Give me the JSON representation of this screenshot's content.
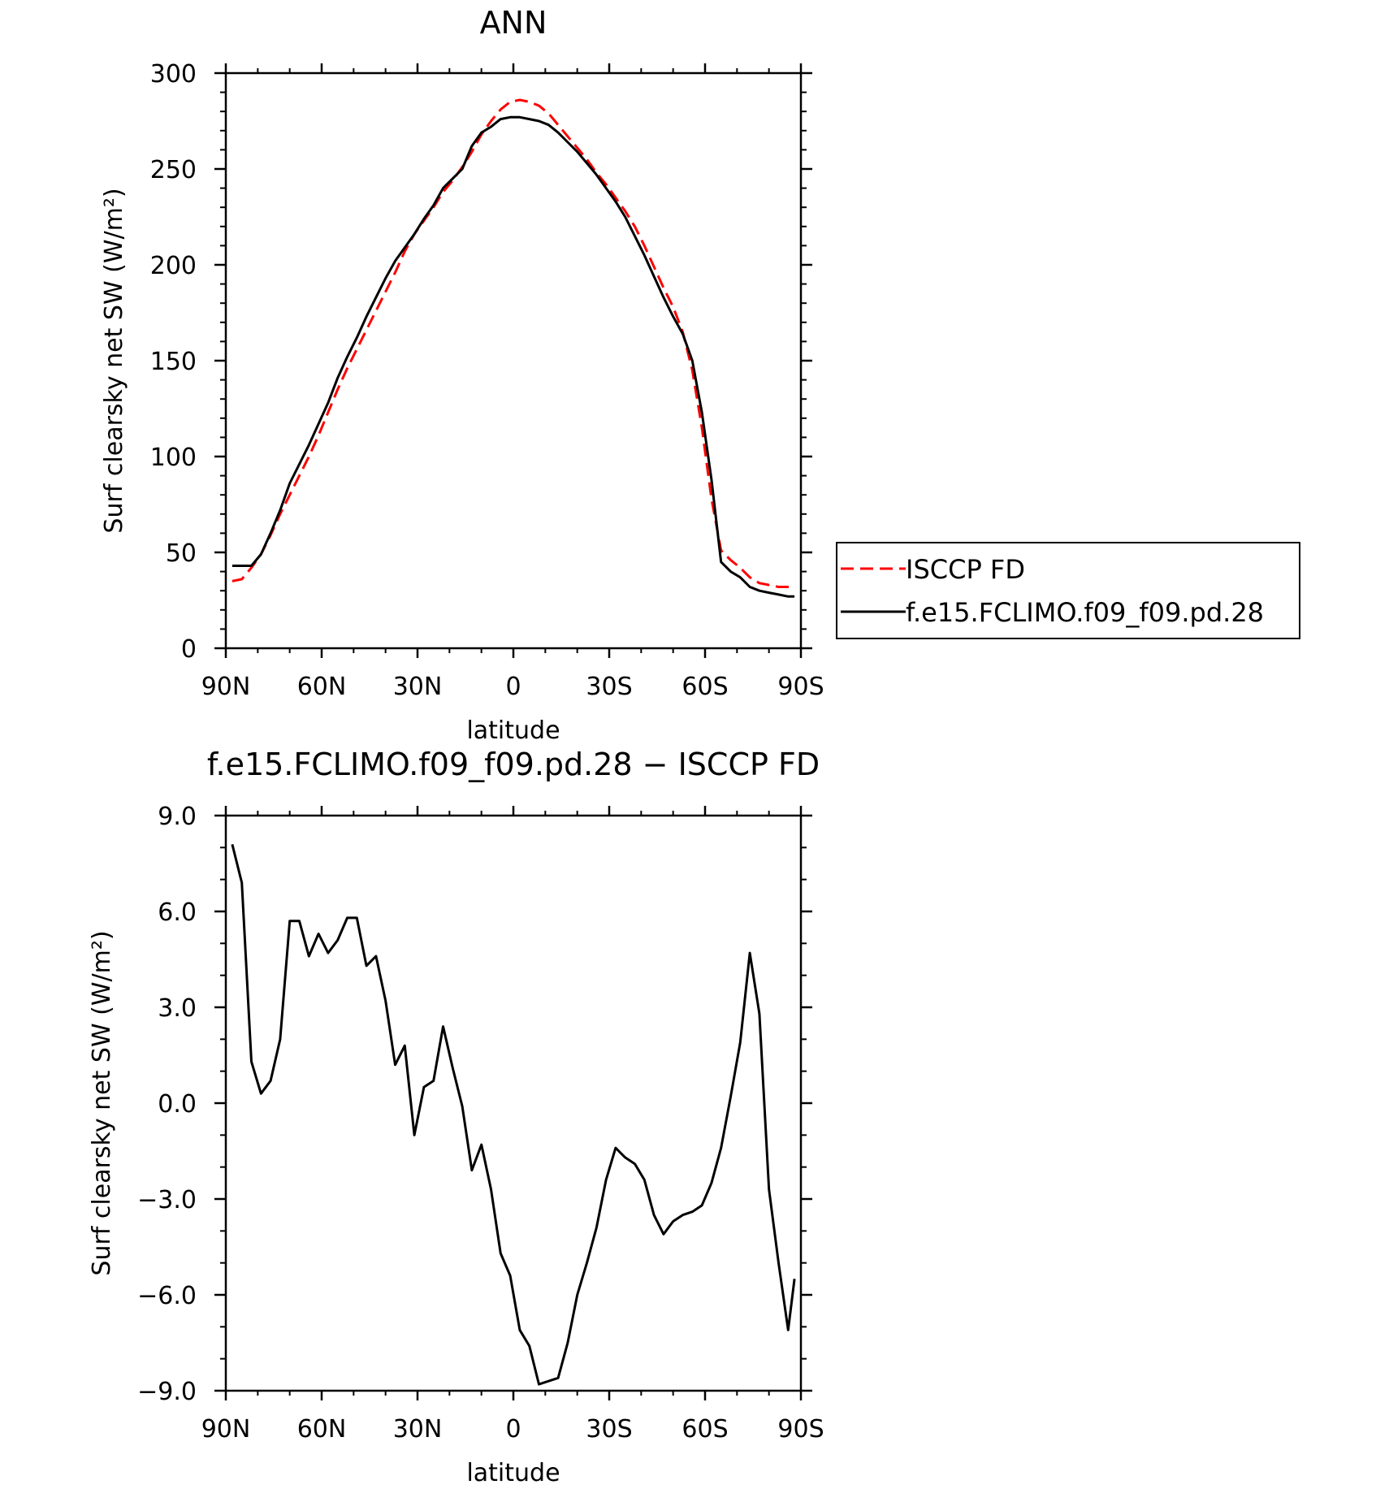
{
  "chart_data": [
    {
      "type": "line",
      "title": "ANN",
      "xlabel": "latitude",
      "ylabel": "Surf clearsky net SW (W/m²)",
      "xlim": [
        90,
        -90
      ],
      "ylim": [
        0,
        300
      ],
      "xticks": [
        {
          "value": 90,
          "label": "90N"
        },
        {
          "value": 60,
          "label": "60N"
        },
        {
          "value": 30,
          "label": "30N"
        },
        {
          "value": 0,
          "label": "0"
        },
        {
          "value": -30,
          "label": "30S"
        },
        {
          "value": -60,
          "label": "60S"
        },
        {
          "value": -90,
          "label": "90S"
        }
      ],
      "yticks": [
        {
          "value": 0,
          "label": "0"
        },
        {
          "value": 50,
          "label": "50"
        },
        {
          "value": 100,
          "label": "100"
        },
        {
          "value": 150,
          "label": "150"
        },
        {
          "value": 200,
          "label": "200"
        },
        {
          "value": 250,
          "label": "250"
        },
        {
          "value": 300,
          "label": "300"
        }
      ],
      "legend_position": "right",
      "series": [
        {
          "name": "ISCCP FD",
          "color": "#ff0000",
          "dash": "dashed",
          "x": [
            88,
            85,
            82,
            79,
            76,
            73,
            70,
            67,
            64,
            61,
            58,
            55,
            52,
            49,
            46,
            43,
            40,
            37,
            34,
            31,
            28,
            25,
            22,
            19,
            16,
            13,
            10,
            7,
            4,
            1,
            -2,
            -5,
            -8,
            -11,
            -14,
            -17,
            -20,
            -23,
            -26,
            -29,
            -32,
            -35,
            -38,
            -41,
            -44,
            -47,
            -50,
            -53,
            -56,
            -59,
            -62,
            -65,
            -68,
            -71,
            -74,
            -77,
            -80,
            -83,
            -86,
            -88
          ],
          "y": [
            35,
            36,
            42,
            49,
            59,
            70,
            80,
            90,
            100,
            111,
            123,
            135,
            146,
            156,
            166,
            176,
            186,
            196,
            207,
            216,
            223,
            230,
            238,
            244,
            251,
            259,
            268,
            275,
            281,
            285,
            286,
            285,
            283,
            279,
            273,
            267,
            261,
            255,
            248,
            242,
            235,
            228,
            220,
            210,
            199,
            188,
            178,
            165,
            145,
            115,
            78,
            51,
            46,
            42,
            37,
            34,
            33,
            32,
            32,
            32
          ]
        },
        {
          "name": "f.e15.FCLIMO.f09_f09.pd.28",
          "color": "#000000",
          "dash": "solid",
          "x": [
            88,
            85,
            82,
            79,
            76,
            73,
            70,
            67,
            64,
            61,
            58,
            55,
            52,
            49,
            46,
            43,
            40,
            37,
            34,
            31,
            28,
            25,
            22,
            19,
            16,
            13,
            10,
            7,
            4,
            1,
            -2,
            -5,
            -8,
            -11,
            -14,
            -17,
            -20,
            -23,
            -26,
            -29,
            -32,
            -35,
            -38,
            -41,
            -44,
            -47,
            -50,
            -53,
            -56,
            -59,
            -62,
            -65,
            -68,
            -71,
            -74,
            -77,
            -80,
            -83,
            -86,
            -88
          ],
          "y": [
            43,
            43,
            43,
            49,
            60,
            72,
            86,
            96,
            106,
            117,
            128,
            141,
            152,
            162,
            173,
            183,
            193,
            202,
            209,
            216,
            224,
            231,
            240,
            245,
            250,
            262,
            269,
            272,
            276,
            277,
            277,
            276,
            275,
            273,
            269,
            264,
            259,
            253,
            247,
            240,
            233,
            225,
            215,
            205,
            194,
            183,
            173,
            164,
            150,
            123,
            88,
            45,
            40,
            37,
            32,
            30,
            29,
            28,
            27,
            27
          ]
        }
      ]
    },
    {
      "type": "line",
      "title": "f.e15.FCLIMO.f09_f09.pd.28 − ISCCP FD",
      "xlabel": "latitude",
      "ylabel": "Surf clearsky net SW (W/m²)",
      "xlim": [
        90,
        -90
      ],
      "ylim": [
        -9,
        9
      ],
      "xticks": [
        {
          "value": 90,
          "label": "90N"
        },
        {
          "value": 60,
          "label": "60N"
        },
        {
          "value": 30,
          "label": "30N"
        },
        {
          "value": 0,
          "label": "0"
        },
        {
          "value": -30,
          "label": "30S"
        },
        {
          "value": -60,
          "label": "60S"
        },
        {
          "value": -90,
          "label": "90S"
        }
      ],
      "yticks": [
        {
          "value": -9,
          "label": "−9.0"
        },
        {
          "value": -6,
          "label": "−6.0"
        },
        {
          "value": -3,
          "label": "−3.0"
        },
        {
          "value": 0,
          "label": "0.0"
        },
        {
          "value": 3,
          "label": "3.0"
        },
        {
          "value": 6,
          "label": "6.0"
        },
        {
          "value": 9,
          "label": "9.0"
        }
      ],
      "series": [
        {
          "color": "#000000",
          "dash": "solid",
          "x": [
            88,
            85,
            82,
            79,
            76,
            73,
            70,
            67,
            64,
            61,
            58,
            55,
            52,
            49,
            46,
            43,
            40,
            37,
            34,
            31,
            28,
            25,
            22,
            19,
            16,
            13,
            10,
            7,
            4,
            1,
            -2,
            -5,
            -8,
            -11,
            -14,
            -17,
            -20,
            -23,
            -26,
            -29,
            -32,
            -35,
            -38,
            -41,
            -44,
            -47,
            -50,
            -53,
            -56,
            -59,
            -62,
            -65,
            -68,
            -71,
            -74,
            -77,
            -80,
            -83,
            -86,
            -88
          ],
          "y": [
            8.1,
            6.9,
            1.3,
            0.3,
            0.7,
            2.0,
            5.7,
            5.7,
            4.6,
            5.3,
            4.7,
            5.1,
            5.8,
            5.8,
            4.3,
            4.6,
            3.2,
            1.2,
            1.8,
            -1.0,
            0.5,
            0.7,
            2.4,
            1.1,
            -0.1,
            -2.1,
            -1.3,
            -2.7,
            -4.7,
            -5.4,
            -7.1,
            -7.6,
            -8.8,
            -8.7,
            -8.6,
            -7.5,
            -6.0,
            -5.0,
            -3.9,
            -2.4,
            -1.4,
            -1.7,
            -1.9,
            -2.4,
            -3.5,
            -4.1,
            -3.7,
            -3.5,
            -3.4,
            -3.2,
            -2.5,
            -1.4,
            0.2,
            1.9,
            4.7,
            2.8,
            -2.7,
            -5.0,
            -7.1,
            -5.5
          ]
        }
      ]
    }
  ],
  "legend": [
    {
      "label": "ISCCP FD",
      "color": "#ff0000",
      "dash": "dashed"
    },
    {
      "label": "f.e15.FCLIMO.f09_f09.pd.28",
      "color": "#000000",
      "dash": "solid"
    }
  ]
}
